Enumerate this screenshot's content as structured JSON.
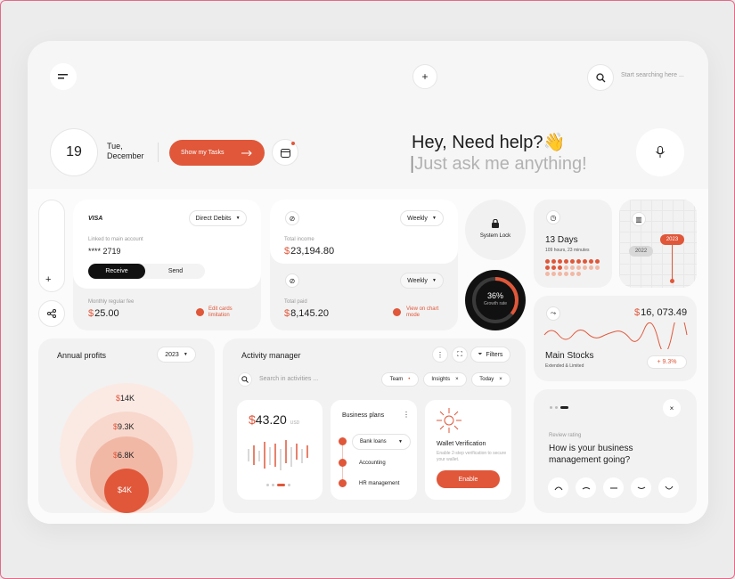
{
  "header": {
    "search_placeholder": "Start searching here ...",
    "plus": "+",
    "day": "19",
    "weekday": "Tue,",
    "month": "December",
    "show_tasks": "Show my Tasks",
    "greeting": "Hey, Need help?👋",
    "prompt": "Just ask me anything!"
  },
  "sidebar": {
    "add": "+"
  },
  "card_visa": {
    "brand": "VISA",
    "dropdown": "Direct Debits",
    "linked_label": "Linked to main account",
    "masked": "**** 2719",
    "receive": "Receive",
    "send": "Send",
    "monthly_label": "Monthly regular fee",
    "currency": "$",
    "monthly_value": "25.00",
    "edit_link": "Edit cards limitation"
  },
  "income": {
    "dropdown": "Weekly",
    "label": "Total income",
    "currency": "$",
    "value": "23,194.80"
  },
  "paid": {
    "dropdown": "Weekly",
    "label": "Total paid",
    "currency": "$",
    "value": "8,145.20",
    "view_link": "View on chart mode"
  },
  "system_lock": {
    "label": "System Lock"
  },
  "growth": {
    "percent": "36%",
    "label": "Growth rate",
    "fraction": 0.36
  },
  "days": {
    "title": "13 Days",
    "subtitle": "109 hours, 23 minutes",
    "filled": 12,
    "total": 24
  },
  "years": {
    "a": "2023",
    "b": "2022"
  },
  "stocks": {
    "currency": "$",
    "value": "16, 073.49",
    "title": "Main Stocks",
    "subtitle": "Extended & Limited",
    "change": "+ 9.3%"
  },
  "annual": {
    "title": "Annual profits",
    "year": "2023",
    "currency": "$",
    "rings": [
      "14K",
      "9.3K",
      "6.8K",
      "4K"
    ]
  },
  "activity": {
    "title": "Activity manager",
    "filters": "Filters",
    "search_placeholder": "Search in activities ...",
    "tags": [
      "Team",
      "Insights",
      "Today"
    ],
    "amount_currency": "$",
    "amount": "43.20",
    "amount_unit": "USD",
    "business_title": "Business plans",
    "business_items": [
      "Bank loans",
      "Accounting",
      "HR management"
    ],
    "wallet_title": "Wallet Verification",
    "wallet_desc": "Enable 2-step verification to secure your wallet.",
    "enable": "Enable"
  },
  "review": {
    "label": "Review rating",
    "question": "How is your business management going?"
  },
  "colors": {
    "accent": "#e0573a",
    "bg": "#f6f6f6"
  }
}
